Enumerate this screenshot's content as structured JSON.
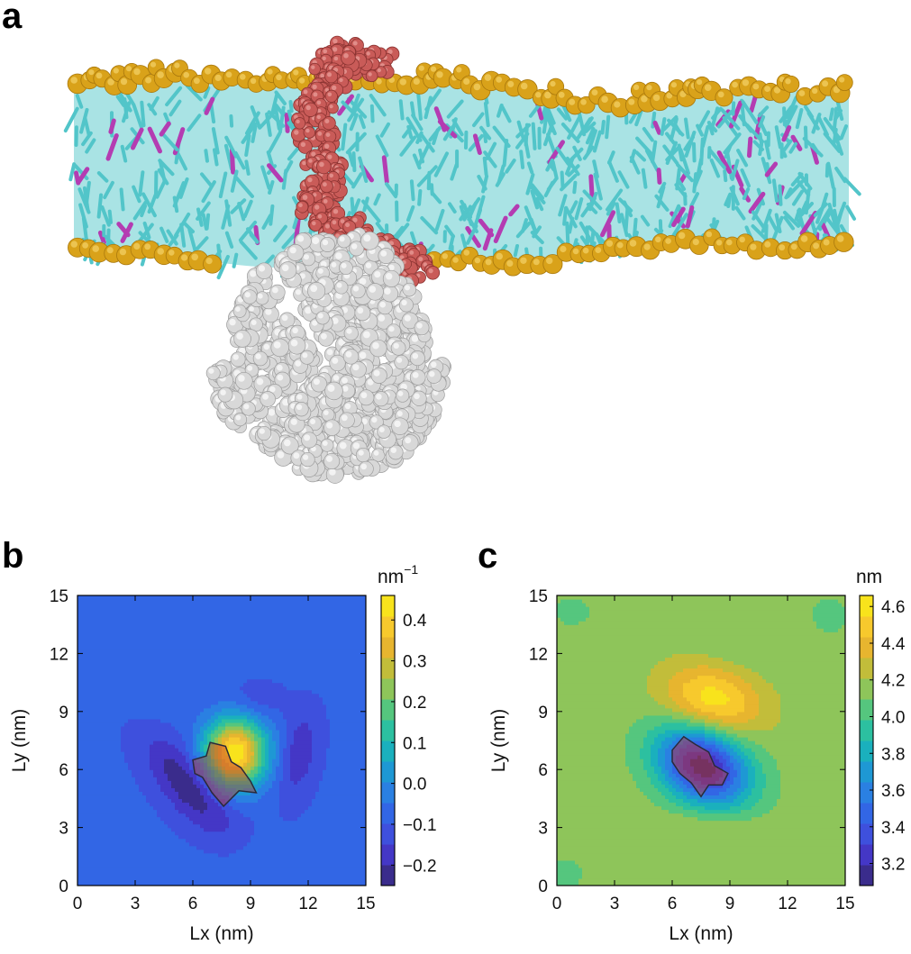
{
  "panels": {
    "a": "a",
    "b": "b",
    "c": "c"
  },
  "colors": {
    "water_headgroup": "#d9a21a",
    "lipid_tail": "#52c5c9",
    "lipid_accent": "#b43cb2",
    "peptide": "#c95b58",
    "protein": "#d8d8d8"
  },
  "chart_data": [
    {
      "type": "heatmap",
      "panel": "b",
      "xlabel": "Lx (nm)",
      "ylabel": "Ly (nm)",
      "xlim": [
        0,
        15
      ],
      "ylim": [
        0,
        15
      ],
      "xticks": [
        "0",
        "3",
        "6",
        "9",
        "12",
        "15"
      ],
      "yticks": [
        "0",
        "3",
        "6",
        "9",
        "12",
        "15"
      ],
      "colorbar": {
        "unit": "nm",
        "unit_sup": "−1",
        "range": [
          -0.25,
          0.46
        ],
        "ticks": [
          {
            "value": -0.2,
            "label": "−0.2"
          },
          {
            "value": -0.1,
            "label": "−0.1"
          },
          {
            "value": 0.0,
            "label": "0.0"
          },
          {
            "value": 0.1,
            "label": "0.1"
          },
          {
            "value": 0.2,
            "label": "0.2"
          },
          {
            "value": 0.3,
            "label": "0.3"
          },
          {
            "value": 0.4,
            "label": "0.4"
          }
        ],
        "colors": [
          "#3a2c8c",
          "#4437c6",
          "#3e50dd",
          "#3266e5",
          "#2a80e2",
          "#1e98d4",
          "#1ab0bd",
          "#2cc0a0",
          "#55c67e",
          "#8ec55a",
          "#c2bd3a",
          "#e7b52f",
          "#f7c92d",
          "#f8e31c"
        ]
      },
      "base_value": -0.09,
      "features": [
        {
          "x": 8.2,
          "y": 6.9,
          "amp": 0.54,
          "sx": 1.15,
          "sy": 1.25,
          "rot": 0
        },
        {
          "x": 5.8,
          "y": 5.2,
          "amp": -0.16,
          "sx": 0.9,
          "sy": 2.2,
          "rot": 40
        },
        {
          "x": 11.5,
          "y": 6.8,
          "amp": -0.1,
          "sx": 0.65,
          "sy": 1.6,
          "rot": -10
        },
        {
          "x": 8.6,
          "y": 12.0,
          "amp": 0.035,
          "sx": 2.3,
          "sy": 0.8,
          "rot": -20
        },
        {
          "x": 9.5,
          "y": 9.8,
          "amp": -0.05,
          "sx": 1.0,
          "sy": 0.8,
          "rot": 0
        },
        {
          "x": 10.5,
          "y": 1.6,
          "amp": 0.03,
          "sx": 2.0,
          "sy": 0.7,
          "rot": 0
        },
        {
          "x": 3.8,
          "y": 9.2,
          "amp": 0.02,
          "sx": 1.0,
          "sy": 1.5,
          "rot": 0
        }
      ],
      "peptide_outline": [
        [
          6.1,
          5.8
        ],
        [
          6.0,
          6.5
        ],
        [
          6.7,
          6.7
        ],
        [
          6.9,
          7.4
        ],
        [
          7.7,
          7.2
        ],
        [
          8.0,
          6.4
        ],
        [
          8.5,
          6.1
        ],
        [
          9.0,
          5.4
        ],
        [
          9.3,
          4.8
        ],
        [
          8.4,
          4.9
        ],
        [
          7.6,
          4.1
        ],
        [
          7.0,
          4.8
        ],
        [
          6.5,
          5.6
        ]
      ]
    },
    {
      "type": "heatmap",
      "panel": "c",
      "xlabel": "Lx (nm)",
      "ylabel": "Ly (nm)",
      "xlim": [
        0,
        15
      ],
      "ylim": [
        0,
        15
      ],
      "xticks": [
        "0",
        "3",
        "6",
        "9",
        "12",
        "15"
      ],
      "yticks": [
        "0",
        "3",
        "6",
        "9",
        "12",
        "15"
      ],
      "colorbar": {
        "unit": "nm",
        "unit_sup": "",
        "range": [
          3.08,
          4.66
        ],
        "ticks": [
          {
            "value": 3.2,
            "label": "3.2"
          },
          {
            "value": 3.4,
            "label": "3.4"
          },
          {
            "value": 3.6,
            "label": "3.6"
          },
          {
            "value": 3.8,
            "label": "3.8"
          },
          {
            "value": 4.0,
            "label": "4.0"
          },
          {
            "value": 4.2,
            "label": "4.2"
          },
          {
            "value": 4.4,
            "label": "4.4"
          },
          {
            "value": 4.6,
            "label": "4.6"
          }
        ],
        "colors": [
          "#3a2c8c",
          "#4437c6",
          "#3e50dd",
          "#3266e5",
          "#2a80e2",
          "#1e98d4",
          "#1ab0bd",
          "#2cc0a0",
          "#55c67e",
          "#8ec55a",
          "#c2bd3a",
          "#e7b52f",
          "#f7c92d",
          "#f8e31c"
        ]
      },
      "base_value": 4.15,
      "features": [
        {
          "x": 8.1,
          "y": 9.6,
          "amp": 0.47,
          "sx": 1.8,
          "sy": 1.2,
          "rot": -15
        },
        {
          "x": 7.6,
          "y": 6.2,
          "amp": -1.03,
          "sx": 1.8,
          "sy": 1.3,
          "rot": -30
        },
        {
          "x": 7.9,
          "y": 3.1,
          "amp": 0.1,
          "sx": 2.3,
          "sy": 0.6,
          "rot": 0
        },
        {
          "x": 14.2,
          "y": 14.0,
          "amp": -0.12,
          "sx": 0.7,
          "sy": 0.7,
          "rot": 0
        },
        {
          "x": 0.8,
          "y": 14.2,
          "amp": -0.1,
          "sx": 0.8,
          "sy": 0.6,
          "rot": 0
        },
        {
          "x": 0.3,
          "y": 0.6,
          "amp": -0.1,
          "sx": 0.9,
          "sy": 0.7,
          "rot": 0
        },
        {
          "x": 8.6,
          "y": 12.3,
          "amp": -0.06,
          "sx": 2.0,
          "sy": 0.5,
          "rot": -20
        }
      ],
      "peptide_outline": [
        [
          6.0,
          7.0
        ],
        [
          6.6,
          7.7
        ],
        [
          7.2,
          7.3
        ],
        [
          7.9,
          6.9
        ],
        [
          8.2,
          6.2
        ],
        [
          8.9,
          5.8
        ],
        [
          8.6,
          5.2
        ],
        [
          7.9,
          5.2
        ],
        [
          7.5,
          4.6
        ],
        [
          7.0,
          5.3
        ],
        [
          6.4,
          5.8
        ],
        [
          6.0,
          6.4
        ]
      ]
    }
  ]
}
